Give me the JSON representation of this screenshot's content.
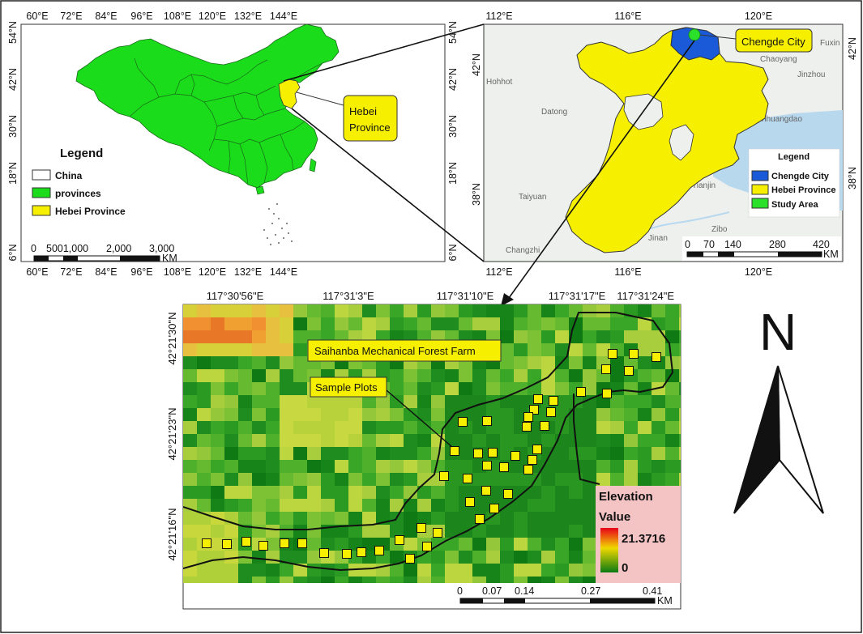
{
  "callouts": {
    "hebei_line1": "Hebei",
    "hebei_line2": "Province",
    "chengde": "Chengde City",
    "forest_farm": "Saihanba Mechanical Forest Farm",
    "sample_plots": "Sample Plots"
  },
  "panel_a": {
    "legend_title": "Legend",
    "legend": [
      {
        "label": "China",
        "color": "#ffffff"
      },
      {
        "label": "provinces",
        "color": "#1adc1a"
      },
      {
        "label": "Hebei Province",
        "color": "#f6f000"
      }
    ],
    "top_ticks": [
      "60°E",
      "72°E",
      "84°E",
      "96°E",
      "108°E",
      "120°E",
      "132°E",
      "144°E"
    ],
    "bottom_ticks": [
      "60°E",
      "72°E",
      "84°E",
      "96°E",
      "108°E",
      "120°E",
      "132°E",
      "144°E"
    ],
    "left_ticks": [
      "54°N",
      "42°N",
      "30°N",
      "18°N",
      "6°N"
    ],
    "right_ticks": [
      "54°N",
      "42°N",
      "30°N",
      "18°N",
      "6°N"
    ],
    "scalebar": {
      "ticks": [
        "0",
        "5001,000",
        "2,000",
        "3,000"
      ],
      "unit": "KM"
    }
  },
  "panel_b": {
    "legend_title": "Legend",
    "legend": [
      {
        "label": "Chengde City",
        "color": "#1a5ad8"
      },
      {
        "label": "Hebei Province",
        "color": "#f6f000"
      },
      {
        "label": "Study Area",
        "color": "#2be02b"
      }
    ],
    "top_ticks": [
      "112°E",
      "116°E",
      "120°E"
    ],
    "bottom_ticks": [
      "112°E",
      "116°E",
      "120°E"
    ],
    "left_ticks": [
      "42°N",
      "38°N"
    ],
    "right_ticks": [
      "42°N",
      "38°N"
    ],
    "basemap_labels": [
      "Hohhot",
      "Datong",
      "Taiyuan",
      "Changzhi",
      "Jinan",
      "Zibo",
      "Chaoyang",
      "Jinzhou",
      "Fuxin",
      "Qinhuangdao",
      "Tianjin"
    ],
    "scalebar": {
      "ticks": [
        "0",
        "70",
        "140",
        "280",
        "420"
      ],
      "unit": "KM"
    }
  },
  "panel_c": {
    "top_ticks": [
      "117°30'56\"E",
      "117°31'3\"E",
      "117°31'10\"E",
      "117°31'17\"E",
      "117°31'24\"E"
    ],
    "left_ticks": [
      "42°21'30\"N",
      "42°21'23\"N",
      "42°21'16\"N"
    ],
    "legend": {
      "title_line1": "Elevation",
      "title_line2": "Value",
      "max": "21.3716",
      "min": "0"
    },
    "scalebar": {
      "ticks": [
        "0",
        "0.07",
        "0.14",
        "0.27",
        "0.41"
      ],
      "unit": "KM"
    }
  },
  "north_arrow": {
    "label": "N"
  },
  "colors": {
    "china": "#1adc1a",
    "hebei": "#f6f000",
    "chengde": "#1a5ad8",
    "study_area": "#2be02b",
    "elevation_high": "#e8001a",
    "elevation_low": "#0a7a14"
  }
}
